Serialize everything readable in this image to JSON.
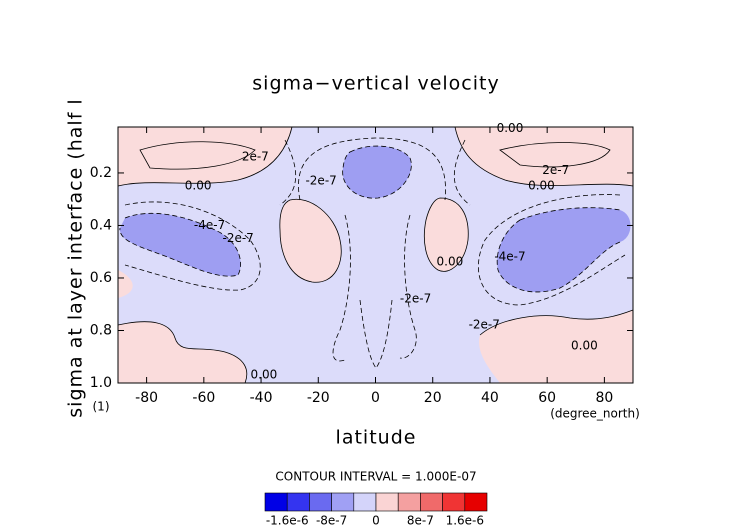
{
  "chart_data": {
    "type": "contour",
    "title": "sigma−vertical velocity",
    "x_label": "latitude",
    "x_unit": "(degree_north)",
    "y_label": "sigma at layer interface (half l",
    "y_unit": "(1)",
    "xlim": [
      -90,
      90
    ],
    "xticks": [
      -80,
      -60,
      -40,
      -20,
      0,
      20,
      40,
      60,
      80
    ],
    "ylim": [
      1,
      0.025
    ],
    "yticks": [
      0.2,
      0.4,
      0.6,
      0.8,
      {
        "value": 1,
        "label": "1.0"
      }
    ],
    "contour_labels": [
      {
        "text": "0.00",
        "x": 47,
        "y": 0.03
      },
      {
        "text": "2e-7",
        "x": -42,
        "y": 0.14
      },
      {
        "text": "0.00",
        "x": -62,
        "y": 0.25
      },
      {
        "text": "-2e-7",
        "x": -19,
        "y": 0.23
      },
      {
        "text": "-4e-7",
        "x": -58,
        "y": 0.4
      },
      {
        "text": "-2e-7",
        "x": -48,
        "y": 0.45
      },
      {
        "text": "2e-7",
        "x": 63,
        "y": 0.19
      },
      {
        "text": "0.00",
        "x": 58,
        "y": 0.25
      },
      {
        "text": "0.00",
        "x": 26,
        "y": 0.54
      },
      {
        "text": "-4e-7",
        "x": 47,
        "y": 0.52
      },
      {
        "text": "-2e-7",
        "x": 14,
        "y": 0.68
      },
      {
        "text": "-2e-7",
        "x": 38,
        "y": 0.78
      },
      {
        "text": "0.00",
        "x": 73,
        "y": 0.86
      },
      {
        "text": "0.00",
        "x": -39,
        "y": 0.97
      }
    ],
    "contour_interval_label": "CONTOUR INTERVAL = 1.000E-07",
    "colorbar": {
      "lim": [
        -2e-06,
        2e-06
      ],
      "colors": [
        "#0000e6",
        "#3434f0",
        "#6a6af0",
        "#a0a0f4",
        "#d4d4fa",
        "#fad4d4",
        "#f4a0a0",
        "#f06a6a",
        "#f03434",
        "#e60000"
      ],
      "ticks": [
        {
          "value": -1.6e-06,
          "label": "-1.6e-6"
        },
        {
          "value": -8e-07,
          "label": "-8e-7"
        },
        0,
        {
          "value": 8e-07,
          "label": "8e-7"
        },
        {
          "value": 1.6e-06,
          "label": "1.6e-6"
        }
      ]
    }
  }
}
